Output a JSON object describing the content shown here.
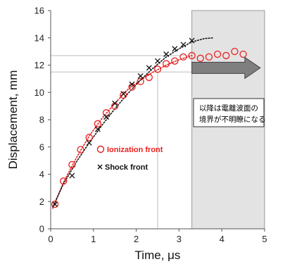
{
  "chart_data": {
    "type": "scatter",
    "title": "",
    "xlabel": "Time, μs",
    "ylabel": "Displacement, mm",
    "xlim": [
      0,
      5
    ],
    "ylim": [
      0,
      16
    ],
    "xticks": [
      "0",
      "1",
      "2",
      "3",
      "4",
      "5"
    ],
    "yticks": [
      "0",
      "2",
      "4",
      "6",
      "8",
      "10",
      "12",
      "14",
      "16"
    ],
    "grid": false,
    "legend_placement": "center-left",
    "shaded_region": {
      "x_from": 3.3,
      "x_to": 5,
      "color": "#e3e3e3"
    },
    "annotation": {
      "line1": "以降は電離波面の",
      "line2": "境界が不明瞭になる",
      "arrow_from_x": 3.3,
      "arrow_to_x": 4.9,
      "arrow_y": 11.8
    },
    "reference_lines": [
      {
        "type": "h",
        "y": 12.7,
        "x_from": 0,
        "x_to": 3.3
      },
      {
        "type": "h",
        "y": 11.5,
        "x_from": 0,
        "x_to": 3.3
      },
      {
        "type": "v",
        "x": 2.5,
        "y_from": 11.5,
        "y_to": 0
      }
    ],
    "series": [
      {
        "name": "Ionization front",
        "marker": "circle",
        "color": "#e8211f",
        "x": [
          0.1,
          0.3,
          0.5,
          0.7,
          0.9,
          1.1,
          1.3,
          1.5,
          1.7,
          1.9,
          2.1,
          2.3,
          2.5,
          2.7,
          2.9,
          3.1,
          3.3,
          3.5,
          3.7,
          3.9,
          4.1,
          4.3,
          4.5
        ],
        "y": [
          1.8,
          3.5,
          4.7,
          5.8,
          6.7,
          7.7,
          8.5,
          9.0,
          9.8,
          10.4,
          10.8,
          11.1,
          11.7,
          12.1,
          12.3,
          12.6,
          12.7,
          12.5,
          12.6,
          12.8,
          12.7,
          13.0,
          12.8
        ]
      },
      {
        "name": "Shock front",
        "marker": "x",
        "color": "#111111",
        "x": [
          0.1,
          0.5,
          0.9,
          1.1,
          1.3,
          1.5,
          1.7,
          1.9,
          2.1,
          2.3,
          2.5,
          2.7,
          2.9,
          3.1,
          3.3
        ],
        "y": [
          1.8,
          3.9,
          6.3,
          7.3,
          8.2,
          9.2,
          9.9,
          10.6,
          11.2,
          11.8,
          12.3,
          12.8,
          13.2,
          13.5,
          13.8
        ]
      }
    ],
    "fit_curves": [
      {
        "series": "Ionization front",
        "color": "#e8211f",
        "x": [
          0.05,
          0.3,
          0.6,
          0.9,
          1.2,
          1.5,
          1.8,
          2.1,
          2.4,
          2.7,
          3.0,
          3.3
        ],
        "y": [
          1.5,
          3.4,
          5.2,
          6.8,
          8.1,
          9.2,
          10.2,
          10.9,
          11.5,
          12.0,
          12.4,
          12.7
        ]
      },
      {
        "series": "Shock front",
        "color": "#111111",
        "x": [
          0.05,
          0.3,
          0.6,
          0.9,
          1.2,
          1.5,
          1.8,
          2.1,
          2.4,
          2.7,
          3.0,
          3.3,
          3.6,
          3.8
        ],
        "y": [
          1.6,
          3.3,
          4.9,
          6.3,
          7.6,
          8.8,
          9.9,
          10.9,
          11.8,
          12.6,
          13.2,
          13.7,
          13.95,
          14.0
        ]
      }
    ]
  }
}
